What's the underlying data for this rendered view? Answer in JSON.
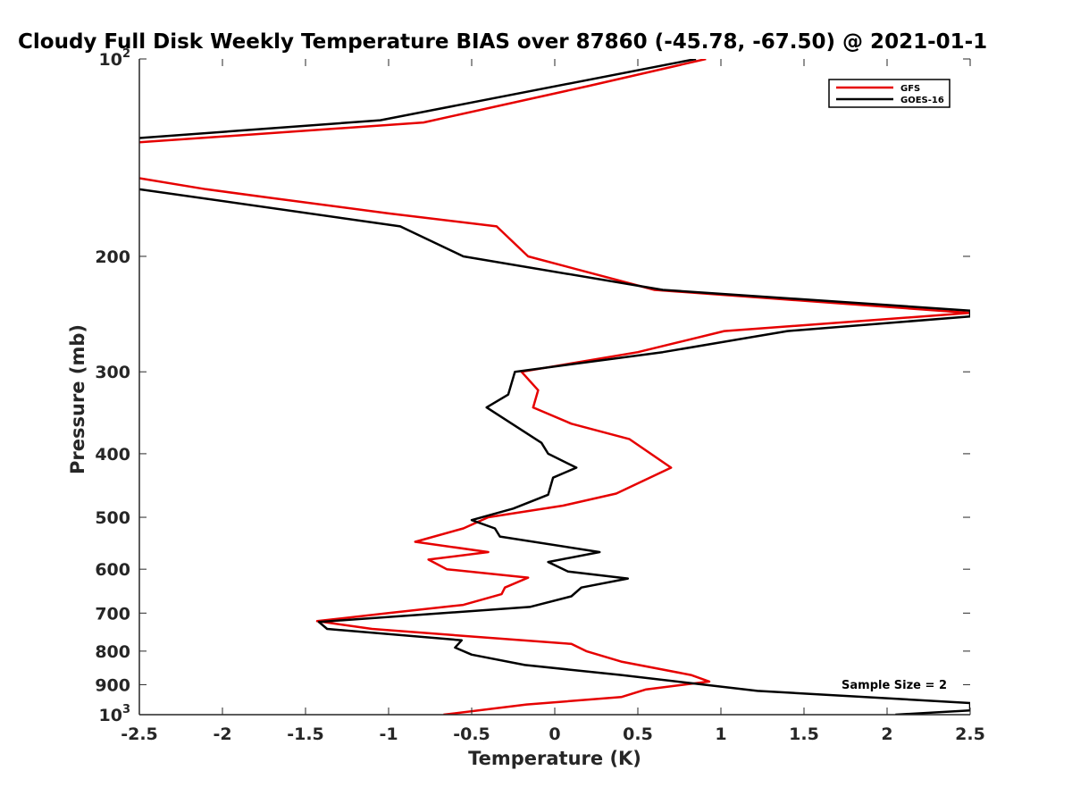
{
  "chart_data": {
    "type": "line",
    "title": "Cloudy Full Disk Weekly Temperature BIAS over 87860 (-45.78, -67.50) @ 2021-01-1",
    "xlabel": "Temperature (K)",
    "ylabel": "Pressure (mb)",
    "xlim": [
      -2.5,
      2.5
    ],
    "ylim": [
      100,
      1000
    ],
    "y_scale": "log",
    "y_reversed": true,
    "grid": false,
    "legend_position": "top-right",
    "x_ticks": [
      {
        "value": -2.5,
        "label": "-2.5"
      },
      {
        "value": -2,
        "label": "-2"
      },
      {
        "value": -1.5,
        "label": "-1.5"
      },
      {
        "value": -1,
        "label": "-1"
      },
      {
        "value": -0.5,
        "label": "-0.5"
      },
      {
        "value": 0,
        "label": "0"
      },
      {
        "value": 0.5,
        "label": "0.5"
      },
      {
        "value": 1,
        "label": "1"
      },
      {
        "value": 1.5,
        "label": "1.5"
      },
      {
        "value": 2,
        "label": "2"
      },
      {
        "value": 2.5,
        "label": "2.5"
      }
    ],
    "y_ticks": [
      {
        "value": 100,
        "label": "10",
        "sup": "2"
      },
      {
        "value": 200,
        "label": "200"
      },
      {
        "value": 300,
        "label": "300"
      },
      {
        "value": 400,
        "label": "400"
      },
      {
        "value": 500,
        "label": "500"
      },
      {
        "value": 600,
        "label": "600"
      },
      {
        "value": 700,
        "label": "700"
      },
      {
        "value": 800,
        "label": "800"
      },
      {
        "value": 900,
        "label": "900"
      },
      {
        "value": 1000,
        "label": "10",
        "sup": "3"
      }
    ],
    "annotation": "Sample Size = 2",
    "series": [
      {
        "name": "GFS",
        "color": "#e60000",
        "segments": [
          [
            {
              "x": 0.91,
              "y": 100
            },
            {
              "x": 0.2,
              "y": 110
            },
            {
              "x": -0.79,
              "y": 125
            },
            {
              "x": -2.5,
              "y": 134
            }
          ],
          [
            {
              "x": -2.5,
              "y": 152
            },
            {
              "x": -2.1,
              "y": 158
            },
            {
              "x": -1.7,
              "y": 163
            },
            {
              "x": -1.0,
              "y": 172
            },
            {
              "x": -0.35,
              "y": 180
            },
            {
              "x": -0.16,
              "y": 200
            },
            {
              "x": 0.6,
              "y": 225
            },
            {
              "x": 2.5,
              "y": 244
            },
            {
              "x": 1.02,
              "y": 260
            },
            {
              "x": 0.5,
              "y": 280
            },
            {
              "x": -0.2,
              "y": 300
            },
            {
              "x": -0.1,
              "y": 320
            },
            {
              "x": -0.13,
              "y": 340
            },
            {
              "x": 0.1,
              "y": 360
            },
            {
              "x": 0.45,
              "y": 380
            },
            {
              "x": 0.7,
              "y": 420
            },
            {
              "x": 0.37,
              "y": 460
            },
            {
              "x": 0.05,
              "y": 480
            },
            {
              "x": -0.4,
              "y": 500
            },
            {
              "x": -0.55,
              "y": 520
            },
            {
              "x": -0.84,
              "y": 545
            },
            {
              "x": -0.4,
              "y": 565
            },
            {
              "x": -0.76,
              "y": 580
            },
            {
              "x": -0.65,
              "y": 600
            },
            {
              "x": -0.16,
              "y": 618
            },
            {
              "x": -0.3,
              "y": 640
            },
            {
              "x": -0.32,
              "y": 655
            },
            {
              "x": -0.55,
              "y": 680
            },
            {
              "x": -1.0,
              "y": 700
            },
            {
              "x": -1.43,
              "y": 720
            },
            {
              "x": -1.1,
              "y": 740
            },
            {
              "x": -0.5,
              "y": 760
            },
            {
              "x": 0.1,
              "y": 780
            },
            {
              "x": 0.19,
              "y": 800
            },
            {
              "x": 0.4,
              "y": 830
            },
            {
              "x": 0.82,
              "y": 870
            },
            {
              "x": 0.93,
              "y": 890
            },
            {
              "x": 0.55,
              "y": 915
            },
            {
              "x": 0.4,
              "y": 940
            },
            {
              "x": -0.17,
              "y": 965
            },
            {
              "x": -0.67,
              "y": 1000
            }
          ]
        ]
      },
      {
        "name": "GOES-16",
        "color": "#000000",
        "segments": [
          [
            {
              "x": 0.85,
              "y": 100
            },
            {
              "x": -1.05,
              "y": 124
            },
            {
              "x": -2.5,
              "y": 132
            }
          ],
          [
            {
              "x": -2.5,
              "y": 158
            },
            {
              "x": -0.93,
              "y": 180
            },
            {
              "x": -0.55,
              "y": 200
            },
            {
              "x": 0.65,
              "y": 225
            },
            {
              "x": 2.5,
              "y": 242
            },
            {
              "x": 2.5,
              "y": 247
            },
            {
              "x": 1.4,
              "y": 260
            },
            {
              "x": 0.65,
              "y": 280
            },
            {
              "x": -0.24,
              "y": 300
            },
            {
              "x": -0.28,
              "y": 325
            },
            {
              "x": -0.41,
              "y": 340
            },
            {
              "x": -0.08,
              "y": 385
            },
            {
              "x": -0.04,
              "y": 400
            },
            {
              "x": 0.13,
              "y": 420
            },
            {
              "x": -0.01,
              "y": 435
            },
            {
              "x": -0.04,
              "y": 462
            },
            {
              "x": -0.25,
              "y": 485
            },
            {
              "x": -0.5,
              "y": 505
            },
            {
              "x": -0.36,
              "y": 520
            },
            {
              "x": -0.33,
              "y": 535
            },
            {
              "x": 0.27,
              "y": 565
            },
            {
              "x": -0.04,
              "y": 585
            },
            {
              "x": 0.08,
              "y": 605
            },
            {
              "x": 0.44,
              "y": 620
            },
            {
              "x": 0.16,
              "y": 640
            },
            {
              "x": 0.1,
              "y": 660
            },
            {
              "x": -0.15,
              "y": 685
            },
            {
              "x": -1.42,
              "y": 722
            },
            {
              "x": -1.37,
              "y": 740
            },
            {
              "x": -0.56,
              "y": 770
            },
            {
              "x": -0.6,
              "y": 790
            },
            {
              "x": -0.5,
              "y": 810
            },
            {
              "x": -0.18,
              "y": 840
            },
            {
              "x": 0.4,
              "y": 870
            },
            {
              "x": 1.22,
              "y": 920
            },
            {
              "x": 2.5,
              "y": 960
            },
            {
              "x": 2.5,
              "y": 985
            },
            {
              "x": 2.05,
              "y": 1000
            }
          ]
        ]
      }
    ]
  }
}
